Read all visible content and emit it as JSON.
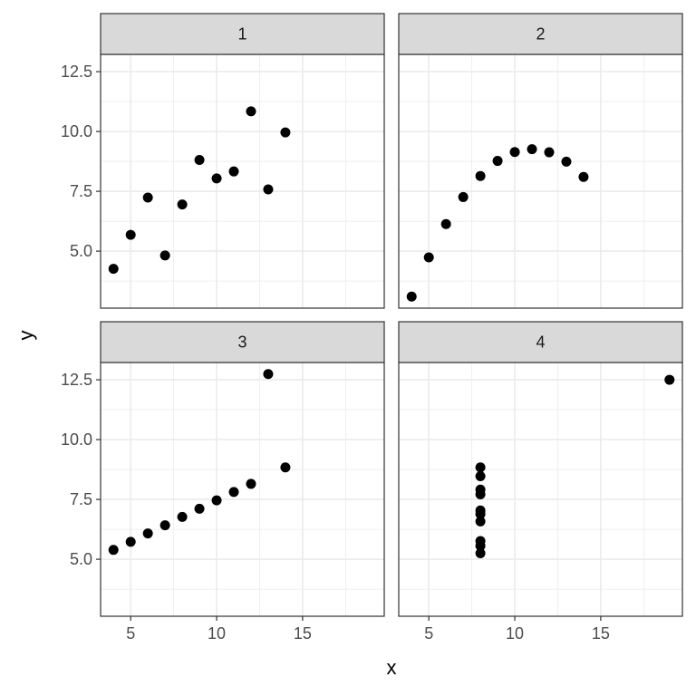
{
  "chart_data": {
    "type": "scatter",
    "xlabel": "x",
    "ylabel": "y",
    "color": "#000000",
    "grid": true,
    "xlim": [
      3.25,
      19.75
    ],
    "ylim": [
      2.618,
      13.222
    ],
    "xticks": [
      5,
      10,
      15
    ],
    "yticks": [
      {
        "value": 5,
        "label": "5.0"
      },
      7.5,
      {
        "value": 10,
        "label": "10.0"
      },
      12.5
    ],
    "x_minor_ticks": [
      7.5,
      12.5,
      17.5
    ],
    "y_minor_ticks": [
      3.75,
      6.25,
      8.75,
      11.25
    ],
    "facets": [
      {
        "title": "1",
        "x": [
          10,
          8,
          13,
          9,
          11,
          14,
          6,
          4,
          12,
          7,
          5
        ],
        "y": [
          8.04,
          6.95,
          7.58,
          8.81,
          8.33,
          9.96,
          7.24,
          4.26,
          10.84,
          4.82,
          5.68
        ]
      },
      {
        "title": "2",
        "x": [
          10,
          8,
          13,
          9,
          11,
          14,
          6,
          4,
          12,
          7,
          5
        ],
        "y": [
          9.14,
          8.14,
          8.74,
          8.77,
          9.26,
          8.1,
          6.13,
          3.1,
          9.13,
          7.26,
          4.74
        ]
      },
      {
        "title": "3",
        "x": [
          10,
          8,
          13,
          9,
          11,
          14,
          6,
          4,
          12,
          7,
          5
        ],
        "y": [
          7.46,
          6.77,
          12.74,
          7.11,
          7.81,
          8.84,
          6.08,
          5.39,
          8.15,
          6.42,
          5.73
        ]
      },
      {
        "title": "4",
        "x": [
          8,
          8,
          8,
          8,
          8,
          8,
          8,
          19,
          8,
          8,
          8
        ],
        "y": [
          6.58,
          5.76,
          7.71,
          8.84,
          8.47,
          7.04,
          5.25,
          12.5,
          5.56,
          7.91,
          6.89
        ]
      }
    ]
  }
}
